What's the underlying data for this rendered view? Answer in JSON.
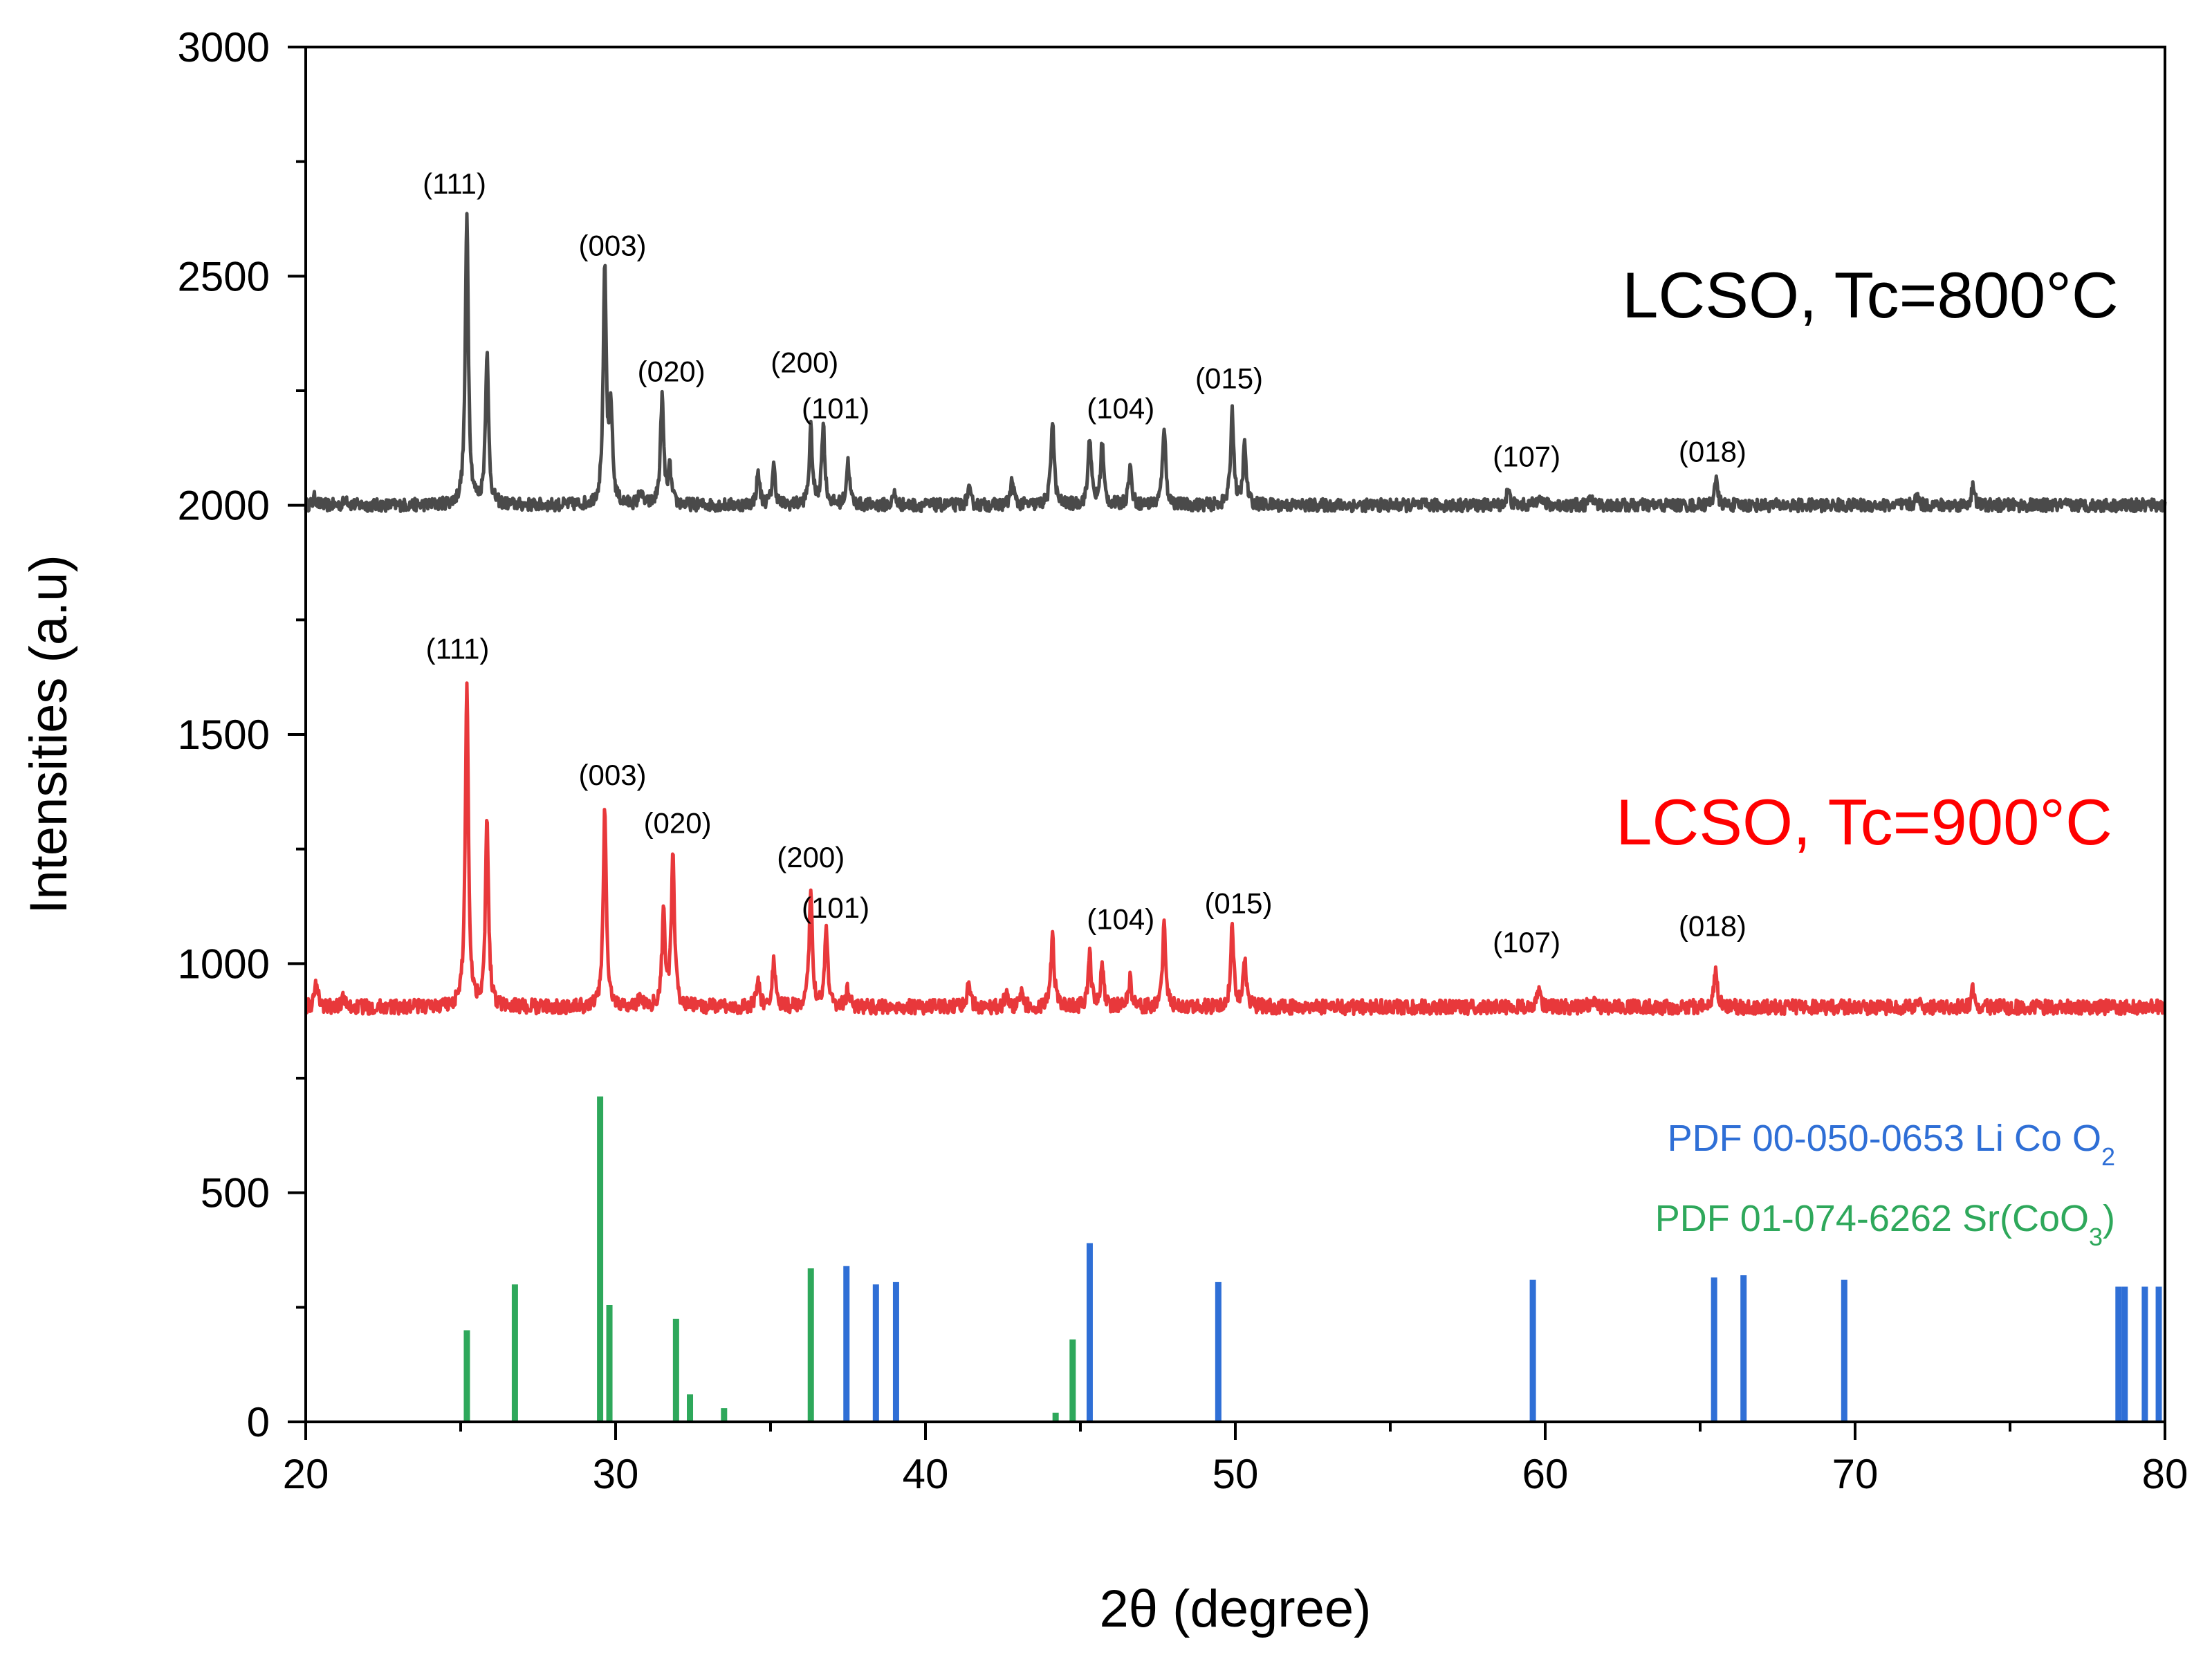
{
  "chart_data": {
    "type": "line",
    "xlabel": "2θ (degree)",
    "ylabel": "Intensities (a.u)",
    "xlim": [
      20,
      80
    ],
    "ylim": [
      0,
      3000
    ],
    "x_ticks": [
      20,
      30,
      40,
      50,
      60,
      70,
      80
    ],
    "y_ticks": [
      0,
      500,
      1000,
      1500,
      2000,
      2500,
      3000
    ],
    "series": [
      {
        "name": "LCSO, Tc=800°C",
        "color": "#4a4a4a",
        "baseline": 2000,
        "noise_amplitude": 14,
        "peaks": [
          {
            "x": 20.3,
            "y": 2018
          },
          {
            "x": 21.3,
            "y": 2018
          },
          {
            "x": 25.2,
            "y": 2630
          },
          {
            "x": 25.85,
            "y": 2330
          },
          {
            "x": 29.65,
            "y": 2505
          },
          {
            "x": 29.85,
            "y": 2200
          },
          {
            "x": 30.8,
            "y": 2030
          },
          {
            "x": 31.5,
            "y": 2235
          },
          {
            "x": 31.75,
            "y": 2075
          },
          {
            "x": 34.6,
            "y": 2070
          },
          {
            "x": 35.1,
            "y": 2085
          },
          {
            "x": 36.3,
            "y": 2165
          },
          {
            "x": 36.7,
            "y": 2175
          },
          {
            "x": 37.5,
            "y": 2095
          },
          {
            "x": 39.0,
            "y": 2025
          },
          {
            "x": 41.4,
            "y": 2035
          },
          {
            "x": 42.8,
            "y": 2055
          },
          {
            "x": 44.1,
            "y": 2190
          },
          {
            "x": 45.3,
            "y": 2150
          },
          {
            "x": 45.7,
            "y": 2135
          },
          {
            "x": 46.6,
            "y": 2085
          },
          {
            "x": 47.7,
            "y": 2175
          },
          {
            "x": 49.9,
            "y": 2205
          },
          {
            "x": 50.3,
            "y": 2130
          },
          {
            "x": 58.8,
            "y": 2035
          },
          {
            "x": 59.8,
            "y": 2030
          },
          {
            "x": 61.5,
            "y": 2020
          },
          {
            "x": 65.5,
            "y": 2060
          },
          {
            "x": 72.0,
            "y": 2020
          },
          {
            "x": 73.8,
            "y": 2040
          }
        ],
        "peak_labels": [
          {
            "text": "(111)",
            "x": 24.8,
            "y": 2680
          },
          {
            "text": "(003)",
            "x": 29.9,
            "y": 2545
          },
          {
            "text": "(020)",
            "x": 31.8,
            "y": 2270
          },
          {
            "text": "(200)",
            "x": 36.1,
            "y": 2290
          },
          {
            "text": "(101)",
            "x": 37.1,
            "y": 2190
          },
          {
            "text": "(104)",
            "x": 46.3,
            "y": 2190
          },
          {
            "text": "(015)",
            "x": 49.8,
            "y": 2255
          },
          {
            "text": "(107)",
            "x": 59.4,
            "y": 2085
          },
          {
            "text": "(018)",
            "x": 65.4,
            "y": 2095
          }
        ]
      },
      {
        "name": "LCSO, Tc=900°C",
        "color": "#e8383b",
        "baseline": 905,
        "noise_amplitude": 16,
        "peaks": [
          {
            "x": 20.35,
            "y": 965
          },
          {
            "x": 21.2,
            "y": 925
          },
          {
            "x": 25.2,
            "y": 1610
          },
          {
            "x": 25.85,
            "y": 1310
          },
          {
            "x": 29.65,
            "y": 1335
          },
          {
            "x": 30.8,
            "y": 930
          },
          {
            "x": 31.55,
            "y": 1115
          },
          {
            "x": 31.85,
            "y": 1230
          },
          {
            "x": 34.6,
            "y": 960
          },
          {
            "x": 35.1,
            "y": 1005
          },
          {
            "x": 36.3,
            "y": 1165
          },
          {
            "x": 36.8,
            "y": 1080
          },
          {
            "x": 37.5,
            "y": 945
          },
          {
            "x": 41.4,
            "y": 960
          },
          {
            "x": 42.6,
            "y": 935
          },
          {
            "x": 43.1,
            "y": 935
          },
          {
            "x": 44.1,
            "y": 1065
          },
          {
            "x": 45.3,
            "y": 1020
          },
          {
            "x": 45.7,
            "y": 990
          },
          {
            "x": 46.6,
            "y": 965
          },
          {
            "x": 47.7,
            "y": 1080
          },
          {
            "x": 49.9,
            "y": 1080
          },
          {
            "x": 50.3,
            "y": 1010
          },
          {
            "x": 59.8,
            "y": 945
          },
          {
            "x": 61.5,
            "y": 925
          },
          {
            "x": 65.5,
            "y": 985
          },
          {
            "x": 72.0,
            "y": 920
          },
          {
            "x": 73.8,
            "y": 945
          }
        ],
        "peak_labels": [
          {
            "text": "(111)",
            "x": 24.9,
            "y": 1665
          },
          {
            "text": "(003)",
            "x": 29.9,
            "y": 1390
          },
          {
            "text": "(020)",
            "x": 32.0,
            "y": 1285
          },
          {
            "text": "(200)",
            "x": 36.3,
            "y": 1210
          },
          {
            "text": "(101)",
            "x": 37.1,
            "y": 1100
          },
          {
            "text": "(104)",
            "x": 46.3,
            "y": 1075
          },
          {
            "text": "(015)",
            "x": 50.1,
            "y": 1110
          },
          {
            "text": "(107)",
            "x": 59.4,
            "y": 1025
          },
          {
            "text": "(018)",
            "x": 65.4,
            "y": 1060
          }
        ]
      }
    ],
    "reference_patterns": [
      {
        "name": "PDF 00-050-0653 Li Co O2",
        "label_parts": [
          "PDF 00-050-0653 Li Co O",
          "2",
          ""
        ],
        "color": "#2f6fd6",
        "sticks": [
          {
            "x": 37.45,
            "y": 340
          },
          {
            "x": 38.4,
            "y": 300
          },
          {
            "x": 39.05,
            "y": 305
          },
          {
            "x": 45.3,
            "y": 390
          },
          {
            "x": 49.45,
            "y": 305
          },
          {
            "x": 59.6,
            "y": 310
          },
          {
            "x": 65.45,
            "y": 315
          },
          {
            "x": 66.4,
            "y": 320
          },
          {
            "x": 69.65,
            "y": 310
          },
          {
            "x": 78.5,
            "y": 295
          },
          {
            "x": 78.7,
            "y": 295
          },
          {
            "x": 79.35,
            "y": 295
          },
          {
            "x": 79.8,
            "y": 295
          }
        ]
      },
      {
        "name": "PDF 01-074-6262 Sr(CoO3)",
        "label_parts": [
          "PDF 01-074-6262 Sr(CoO",
          "3",
          ")"
        ],
        "color": "#2ea85b",
        "sticks": [
          {
            "x": 25.2,
            "y": 200
          },
          {
            "x": 26.75,
            "y": 300
          },
          {
            "x": 29.5,
            "y": 710
          },
          {
            "x": 29.8,
            "y": 255
          },
          {
            "x": 31.95,
            "y": 225
          },
          {
            "x": 32.4,
            "y": 60
          },
          {
            "x": 33.5,
            "y": 30
          },
          {
            "x": 36.3,
            "y": 335
          },
          {
            "x": 44.2,
            "y": 20
          },
          {
            "x": 44.75,
            "y": 180
          }
        ]
      }
    ],
    "annotations": [
      {
        "text": "LCSO, Tc=800°C",
        "x": 78.5,
        "y": 2410,
        "color": "#000000",
        "series": 0
      },
      {
        "text": "LCSO, Tc=900°C",
        "x": 78.3,
        "y": 1260,
        "color": "#ff0000",
        "series": 1
      }
    ],
    "legend_position": "bottom-right",
    "grid": false
  }
}
